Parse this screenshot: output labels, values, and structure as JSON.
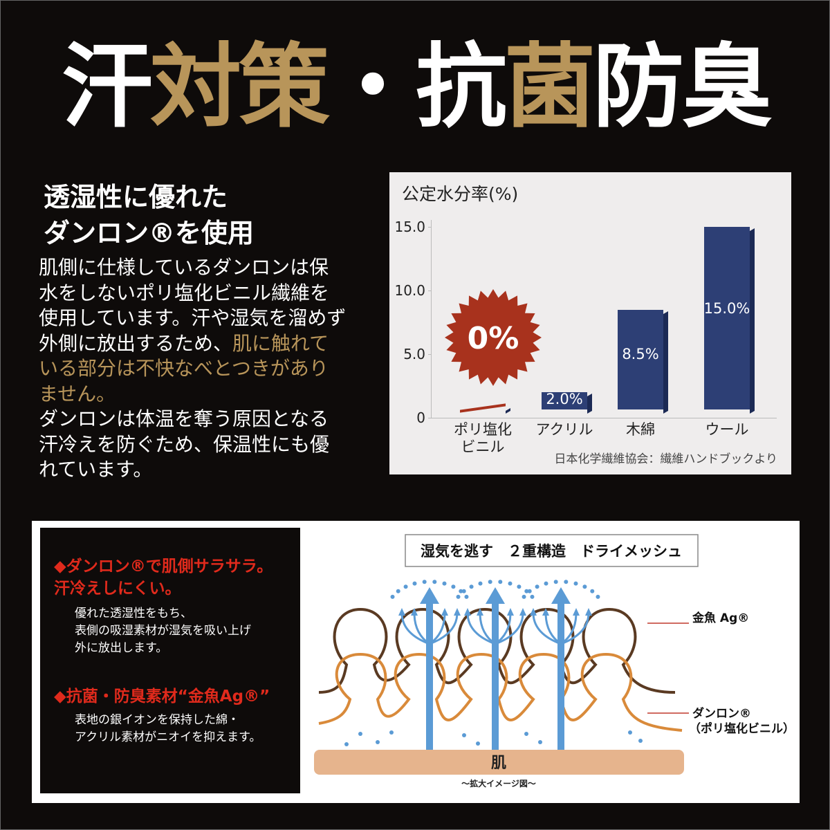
{
  "title": [
    {
      "text": "汗",
      "gold": false
    },
    {
      "text": "対策",
      "gold": true
    },
    {
      "text": "・抗",
      "gold": false
    },
    {
      "text": "菌",
      "gold": true
    },
    {
      "text": "防臭",
      "gold": false
    }
  ],
  "heading": [
    "透湿性に優れた",
    "ダンロン®を使用"
  ],
  "body": [
    [
      {
        "text": "肌側に仕様しているダンロンは保水をしないポリ塩化ビニル繊維を使用しています。汗や湿気を溜めず外側に放出するため、",
        "gold": false
      },
      {
        "text": "肌に触れている部分は不快なべとつきがありません。",
        "gold": true
      }
    ],
    [
      {
        "text": "ダンロンは体温を奪う原因となる汗冷えを防ぐため、保温性にも優れています。",
        "gold": false
      }
    ]
  ],
  "chart_data": {
    "type": "bar",
    "title": "公定水分率(%)",
    "source": "日本化学繊維協会：繊維ハンドブックより",
    "categories": [
      "ポリ塩化ビニル",
      "アクリル",
      "木綿",
      "ウール"
    ],
    "values": [
      0,
      2.0,
      8.5,
      15.0
    ],
    "value_labels": [
      "0%",
      "2.0%",
      "8.5%",
      "15.0%"
    ],
    "colors": [
      "#a8321d",
      "#2d3f75",
      "#2d3f75",
      "#2d3f75"
    ],
    "ylim": [
      0,
      15
    ],
    "yticks": [
      0,
      {
        "value": 5,
        "label": "5.0"
      },
      {
        "value": 10,
        "label": "10.0"
      },
      {
        "value": 15,
        "label": "15.0"
      }
    ],
    "grid": false
  },
  "features": [
    {
      "heading": "◆ダンロン®で肌側サラサラ。汗冷えしにくい。",
      "lines": [
        "優れた透湿性をもち、",
        "表側の吸湿素材が湿気を吸い上げ",
        "外に放出します。"
      ]
    },
    {
      "heading": "◆抗菌・防臭素材“金魚Ag®”",
      "lines": [
        "表地の銀イオンを保持した綿・",
        "アクリル素材がニオイを抑えます。"
      ]
    }
  ],
  "diagram": {
    "title": "湿気を逃す　２重構造　ドライメッシュ",
    "label_top": "金魚 Ag®",
    "label_bottom": [
      "ダンロン®",
      "（ポリ塩化ビニル）"
    ],
    "skin": "肌",
    "caption": "～拡大イメージ図～"
  }
}
